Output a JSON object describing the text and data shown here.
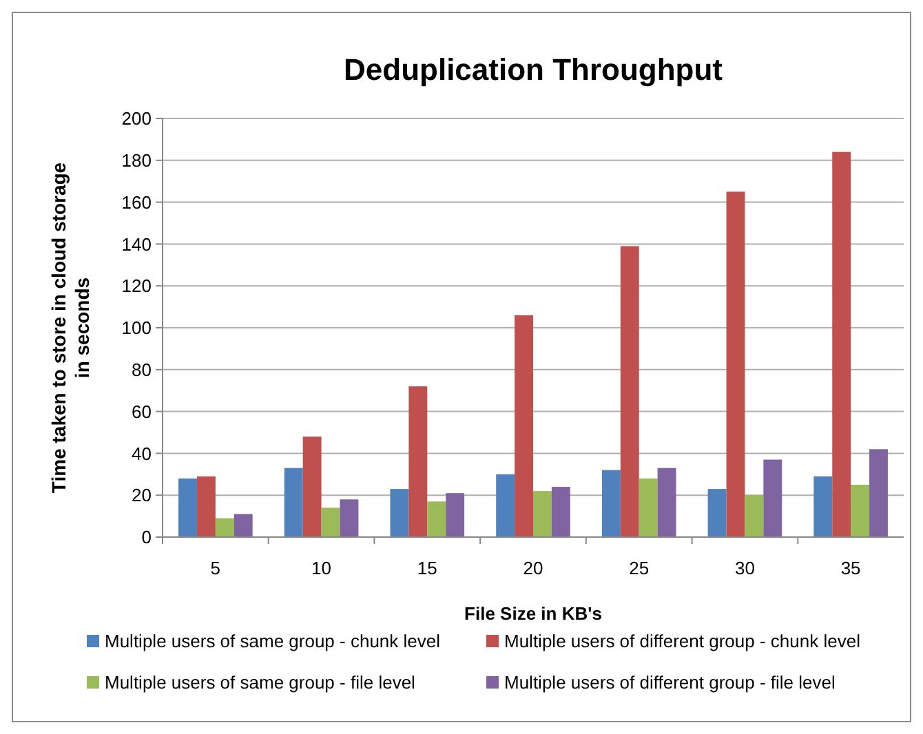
{
  "chart_data": {
    "type": "bar",
    "title": "Deduplication Throughput",
    "xlabel": "File Size in KB's",
    "ylabel": "Time taken to store in cloud storage in seconds",
    "categories": [
      "5",
      "10",
      "15",
      "20",
      "25",
      "30",
      "35"
    ],
    "series": [
      {
        "name": "Multiple users of same group - chunk level",
        "color": "#4f81bd",
        "values": [
          28,
          33,
          23,
          30,
          32,
          23,
          29
        ]
      },
      {
        "name": "Multiple users of different group - chunk level",
        "color": "#c0504d",
        "values": [
          29,
          48,
          72,
          106,
          139,
          165,
          184
        ]
      },
      {
        "name": "Multiple users of same group - file level",
        "color": "#9bbb59",
        "values": [
          9,
          14,
          17,
          22,
          28,
          20,
          25
        ]
      },
      {
        "name": "Multiple users of different group - file level",
        "color": "#8064a2",
        "values": [
          11,
          18,
          21,
          24,
          33,
          37,
          42
        ]
      }
    ],
    "ylim": [
      0,
      200
    ],
    "yticks": [
      0,
      20,
      40,
      60,
      80,
      100,
      120,
      140,
      160,
      180,
      200
    ],
    "grid": "y",
    "legend": "bottom"
  }
}
